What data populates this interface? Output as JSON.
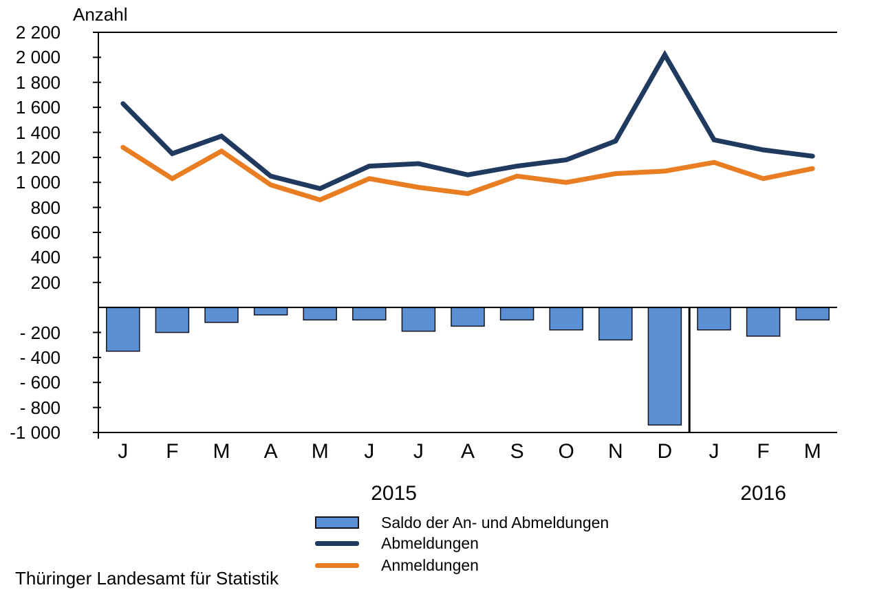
{
  "footer": "Thüringer Landesamt für Statistik",
  "chart_data": {
    "type": "combo_bar_line",
    "ylabel": "Anzahl",
    "xlabel": "",
    "grid": false,
    "legend_position": "bottom",
    "categories": [
      "J",
      "F",
      "M",
      "A",
      "M",
      "J",
      "J",
      "A",
      "S",
      "O",
      "N",
      "D",
      "J",
      "F",
      "M"
    ],
    "year_labels": [
      {
        "label": "2015",
        "month_anchor": 5.5
      },
      {
        "label": "2016",
        "month_anchor": 13
      }
    ],
    "series": [
      {
        "name": "Saldo der An- und Abmeldungen",
        "type": "bar",
        "color": "#5B90D5",
        "values": [
          -350,
          -200,
          -120,
          -60,
          -100,
          -100,
          -190,
          -150,
          -100,
          -180,
          -260,
          -940,
          -180,
          -230,
          -100
        ]
      },
      {
        "name": "Abmeldungen",
        "type": "line",
        "color": "#1F3A5E",
        "values": [
          1630,
          1230,
          1370,
          1050,
          950,
          1130,
          1150,
          1060,
          1130,
          1180,
          1330,
          2020,
          1340,
          1260,
          1210
        ]
      },
      {
        "name": "Anmeldungen",
        "type": "line",
        "color": "#E87D22",
        "values": [
          1280,
          1030,
          1250,
          980,
          860,
          1030,
          960,
          910,
          1050,
          1000,
          1070,
          1090,
          1160,
          1030,
          1110
        ]
      }
    ],
    "ylim": [
      -1000,
      2200
    ],
    "ytick_step": 200,
    "ytick_labels": [
      "2 200",
      "2 000",
      "1 800",
      "1 600",
      "1 400",
      "1 200",
      "1 000",
      "800",
      "600",
      "400",
      "200",
      "",
      "- 200",
      "- 400",
      "- 600",
      "- 800",
      "-1 000"
    ],
    "separator_after_index": 12,
    "bar_border_color": "#14141E",
    "axis_color": "#000000"
  },
  "legend": {
    "items": [
      {
        "swatch": "bar",
        "series_index": 0
      },
      {
        "swatch": "line",
        "series_index": 1
      },
      {
        "swatch": "line",
        "series_index": 2
      }
    ]
  }
}
